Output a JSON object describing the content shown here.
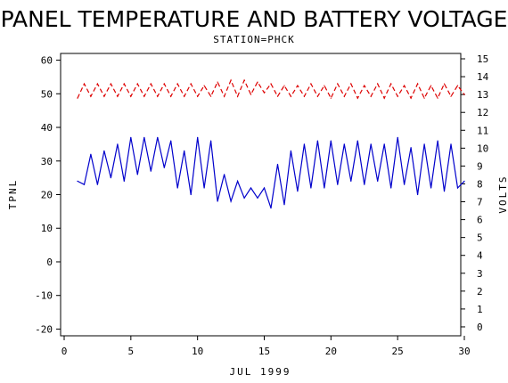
{
  "chart_data": {
    "type": "line",
    "title": "PANEL TEMPERATURE AND BATTERY VOLTAGE",
    "subtitle": "STATION=PHCK",
    "xlabel": "JUL 1999",
    "ylabel_left": "TPNL",
    "ylabel_right": "VOLTS",
    "xlim": [
      0,
      30
    ],
    "ylim_left": [
      -22,
      62
    ],
    "ylim_right": [
      -0.5,
      15.3
    ],
    "x_ticks": [
      0,
      5,
      10,
      15,
      20,
      25,
      30
    ],
    "y_left_ticks": [
      -20,
      -10,
      0,
      10,
      20,
      30,
      40,
      50,
      60
    ],
    "y_right_ticks": [
      0,
      1,
      2,
      3,
      4,
      5,
      6,
      7,
      8,
      9,
      10,
      11,
      12,
      13,
      14,
      15
    ],
    "grid": false,
    "series": [
      {
        "axis": "left",
        "color": "#0000cc",
        "style": "solid",
        "x": [
          1.0,
          1.5,
          2.0,
          2.5,
          3.0,
          3.5,
          4.0,
          4.5,
          5.0,
          5.5,
          6.0,
          6.5,
          7.0,
          7.5,
          8.0,
          8.5,
          9.0,
          9.5,
          10.0,
          10.5,
          11.0,
          11.5,
          12.0,
          12.5,
          13.0,
          13.5,
          14.0,
          14.5,
          15.0,
          15.5,
          16.0,
          16.5,
          17.0,
          17.5,
          18.0,
          18.5,
          19.0,
          19.5,
          20.0,
          20.5,
          21.0,
          21.5,
          22.0,
          22.5,
          23.0,
          23.5,
          24.0,
          24.5,
          25.0,
          25.5,
          26.0,
          26.5,
          27.0,
          27.5,
          28.0,
          28.5,
          29.0,
          29.5,
          30.0
        ],
        "values": [
          24,
          23,
          32,
          23,
          33,
          25,
          35,
          24,
          37,
          26,
          37,
          27,
          37,
          28,
          36,
          22,
          33,
          20,
          37,
          22,
          36,
          18,
          26,
          18,
          24,
          19,
          22,
          19,
          22,
          16,
          29,
          17,
          33,
          21,
          35,
          22,
          36,
          22,
          36,
          23,
          35,
          24,
          36,
          23,
          35,
          24,
          35,
          22,
          37,
          23,
          34,
          20,
          35,
          22,
          36,
          21,
          35,
          22,
          24
        ]
      },
      {
        "axis": "right",
        "color": "#dd0000",
        "style": "dashed",
        "x": [
          1.0,
          1.5,
          2.0,
          2.5,
          3.0,
          3.5,
          4.0,
          4.5,
          5.0,
          5.5,
          6.0,
          6.5,
          7.0,
          7.5,
          8.0,
          8.5,
          9.0,
          9.5,
          10.0,
          10.5,
          11.0,
          11.5,
          12.0,
          12.5,
          13.0,
          13.5,
          14.0,
          14.5,
          15.0,
          15.5,
          16.0,
          16.5,
          17.0,
          17.5,
          18.0,
          18.5,
          19.0,
          19.5,
          20.0,
          20.5,
          21.0,
          21.5,
          22.0,
          22.5,
          23.0,
          23.5,
          24.0,
          24.5,
          25.0,
          25.5,
          26.0,
          26.5,
          27.0,
          27.5,
          28.0,
          28.5,
          29.0,
          29.5,
          30.0
        ],
        "values": [
          12.8,
          13.6,
          12.9,
          13.6,
          12.9,
          13.6,
          12.9,
          13.6,
          12.9,
          13.6,
          12.9,
          13.6,
          12.9,
          13.6,
          12.9,
          13.6,
          12.9,
          13.6,
          12.9,
          13.5,
          12.9,
          13.7,
          12.9,
          13.8,
          12.9,
          13.8,
          13.0,
          13.7,
          13.1,
          13.6,
          12.9,
          13.5,
          12.9,
          13.5,
          12.9,
          13.6,
          12.9,
          13.5,
          12.8,
          13.6,
          12.9,
          13.6,
          12.8,
          13.5,
          12.9,
          13.6,
          12.8,
          13.6,
          12.9,
          13.5,
          12.8,
          13.6,
          12.8,
          13.5,
          12.8,
          13.6,
          12.9,
          13.5,
          13.0
        ]
      }
    ]
  }
}
